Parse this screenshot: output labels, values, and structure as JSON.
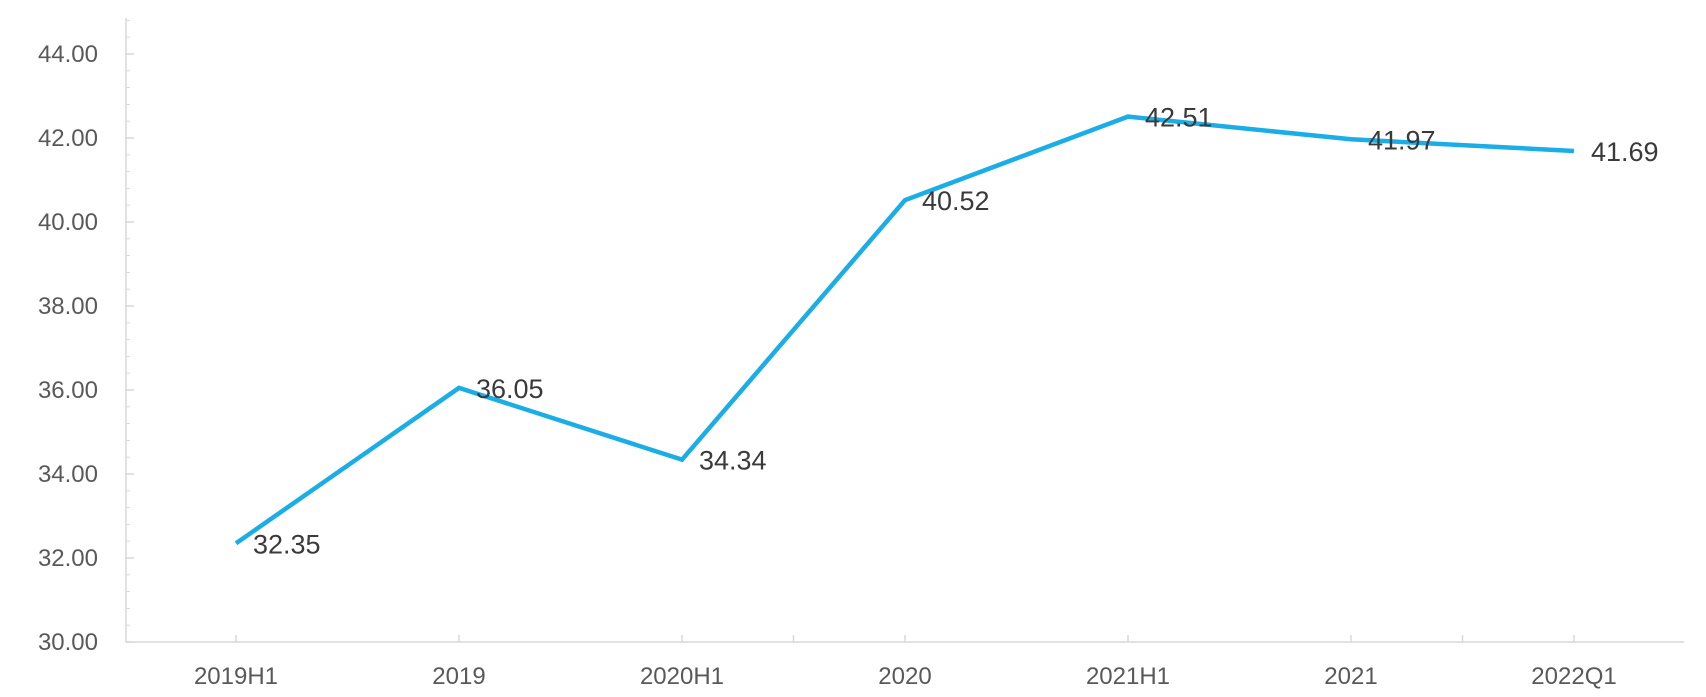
{
  "chart_data": {
    "type": "line",
    "categories": [
      "2019H1",
      "2019",
      "2020H1",
      "2020",
      "2021H1",
      "2021",
      "2022Q1"
    ],
    "series": [
      {
        "values": [
          32.35,
          36.05,
          34.34,
          40.52,
          42.51,
          41.97,
          41.69
        ],
        "color": "#1AADE6"
      }
    ],
    "data_labels": [
      "32.35",
      "36.05",
      "34.34",
      "40.52",
      "42.51",
      "41.97",
      "41.69"
    ],
    "ylim": [
      30,
      45
    ],
    "yticks": [
      "30.00",
      "32.00",
      "34.00",
      "36.00",
      "38.00",
      "40.00",
      "42.00",
      "44.00"
    ],
    "ytick_values": [
      30,
      32,
      34,
      36,
      38,
      40,
      42,
      44
    ],
    "grid": false,
    "legend": "none",
    "axis_color": "#D9D9D9",
    "tick_text_color": "#595959",
    "label_text_color": "#3A3A3A"
  }
}
